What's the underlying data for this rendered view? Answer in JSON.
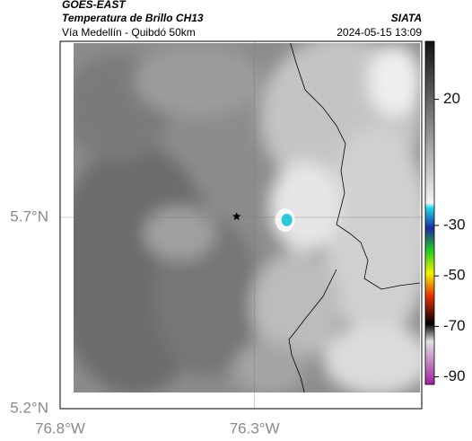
{
  "header": {
    "source": "GOES-EAST",
    "title": "Temperatura de Brillo CH13",
    "subtitle": "Vía Medellín - Quibdó 50km",
    "brand": "SIATA",
    "datetime": "2024-05-15 13:09"
  },
  "map": {
    "xlim": [
      -76.8,
      -75.87
    ],
    "ylim": [
      5.2,
      6.16
    ],
    "xticks": [
      {
        "value": -76.8,
        "label": "76.8°W"
      },
      {
        "value": -76.3,
        "label": "76.3°W"
      }
    ],
    "yticks": [
      {
        "value": 5.2,
        "label": "5.2°N"
      },
      {
        "value": 5.7,
        "label": "5.7°N"
      }
    ],
    "grid": true,
    "locations": [
      {
        "lon": -76.346,
        "lat": 5.702,
        "color": "#000000"
      },
      {
        "lon": -76.217,
        "lat": 5.693,
        "color": "#2ec8d8"
      }
    ]
  },
  "colorbar": {
    "clim": [
      -93,
      43
    ],
    "ticks": [
      20,
      -30,
      -50,
      -70,
      -90
    ],
    "colormap": [
      {
        "value": 43,
        "color": "#111111"
      },
      {
        "value": -21,
        "color": "#f4f4f4"
      },
      {
        "value": -23,
        "color": "#22d8e8"
      },
      {
        "value": -31,
        "color": "#1a2aa0"
      },
      {
        "value": -40,
        "color": "#22cc22"
      },
      {
        "value": -49,
        "color": "#f2f200"
      },
      {
        "value": -58,
        "color": "#e83000"
      },
      {
        "value": -69,
        "color": "#000000"
      },
      {
        "value": -76,
        "color": "#e0e0e0"
      },
      {
        "value": -93,
        "color": "#a020a0"
      }
    ]
  }
}
